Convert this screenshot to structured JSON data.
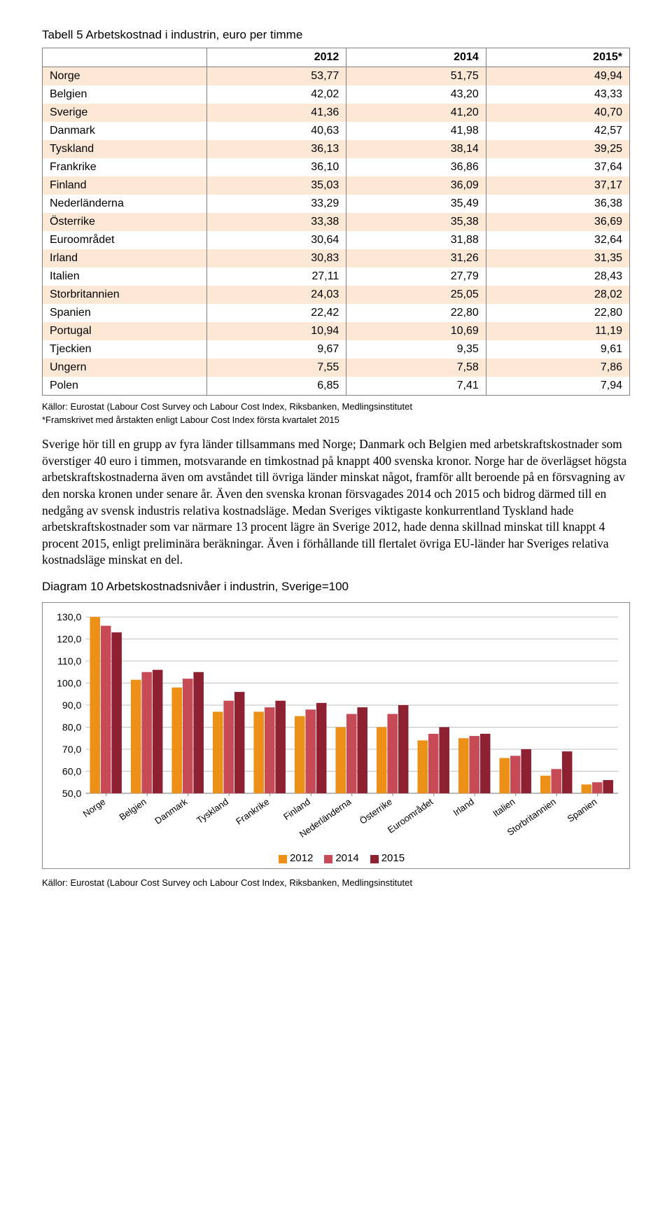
{
  "table": {
    "title": "Tabell 5 Arbetskostnad i industrin, euro per timme",
    "columns": [
      "",
      "2012",
      "2014",
      "2015*"
    ],
    "rows": [
      [
        "Norge",
        "53,77",
        "51,75",
        "49,94"
      ],
      [
        "Belgien",
        "42,02",
        "43,20",
        "43,33"
      ],
      [
        "Sverige",
        "41,36",
        "41,20",
        "40,70"
      ],
      [
        "Danmark",
        "40,63",
        "41,98",
        "42,57"
      ],
      [
        "Tyskland",
        "36,13",
        "38,14",
        "39,25"
      ],
      [
        "Frankrike",
        "36,10",
        "36,86",
        "37,64"
      ],
      [
        "Finland",
        "35,03",
        "36,09",
        "37,17"
      ],
      [
        "Nederländerna",
        "33,29",
        "35,49",
        "36,38"
      ],
      [
        "Österrike",
        "33,38",
        "35,38",
        "36,69"
      ],
      [
        "Euroområdet",
        "30,64",
        "31,88",
        "32,64"
      ],
      [
        "Irland",
        "30,83",
        "31,26",
        "31,35"
      ],
      [
        "Italien",
        "27,11",
        "27,79",
        "28,43"
      ],
      [
        "Storbritannien",
        "24,03",
        "25,05",
        "28,02"
      ],
      [
        "Spanien",
        "22,42",
        "22,80",
        "22,80"
      ],
      [
        "Portugal",
        "10,94",
        "10,69",
        "11,19"
      ],
      [
        "Tjeckien",
        "9,67",
        "9,35",
        "9,61"
      ],
      [
        "Ungern",
        "7,55",
        "7,58",
        "7,86"
      ],
      [
        "Polen",
        "6,85",
        "7,41",
        "7,94"
      ]
    ],
    "odd_row_color": "#fde8d6",
    "border_color": "#808080"
  },
  "source1": "Källor: Eurostat (Labour Cost Survey och Labour Cost Index, Riksbanken, Medlingsinstitutet",
  "footnote": "*Framskrivet med årstakten enligt  Labour Cost Index första kvartalet 2015",
  "body": "Sverige hör till en grupp av fyra länder tillsammans med Norge; Danmark och Belgien med arbetskraftskostnader som överstiger 40 euro i timmen, motsvarande en timkostnad på knappt 400 svenska kronor. Norge har de överlägset högsta arbetskraftskostnaderna även om avståndet till övriga länder minskat något, framför allt beroende på en försvagning av den norska kronen under senare år. Även den svenska kronan försvagades 2014 och 2015 och bidrog därmed till en nedgång av svensk industris relativa kostnadsläge. Medan Sveriges viktigaste konkurrentland Tyskland hade arbetskraftskostnader som var närmare 13 procent lägre än Sverige 2012, hade denna skillnad minskat till knappt 4 procent 2015, enligt preliminära beräkningar. Även i förhållande till flertalet övriga EU-länder har Sveriges relativa kostnadsläge minskat en del.",
  "chart": {
    "title": "Diagram 10 Arbetskostnadsnivåer i industrin, Sverige=100",
    "type": "grouped-bar",
    "categories": [
      "Norge",
      "Belgien",
      "Danmark",
      "Tyskland",
      "Frankrike",
      "Finland",
      "Nederländerna",
      "Österrike",
      "Euroområdet",
      "Irland",
      "Italien",
      "Storbritannien",
      "Spanien"
    ],
    "series": [
      {
        "name": "2012",
        "color": "#ed9017",
        "values": [
          130,
          101.5,
          98,
          87,
          87,
          85,
          80,
          80,
          74,
          75,
          66,
          58,
          54
        ]
      },
      {
        "name": "2014",
        "color": "#c74b56",
        "values": [
          126,
          105,
          102,
          92,
          89,
          88,
          86,
          86,
          77,
          76,
          67,
          61,
          55
        ]
      },
      {
        "name": "2015",
        "color": "#8e2131",
        "values": [
          123,
          106,
          105,
          96,
          92,
          91,
          89,
          90,
          80,
          77,
          70,
          69,
          56
        ]
      }
    ],
    "ylim": [
      50,
      130
    ],
    "ytick_step": 10,
    "yticks": [
      "50,0",
      "60,0",
      "70,0",
      "80,0",
      "90,0",
      "100,0",
      "110,0",
      "120,0",
      "130,0"
    ],
    "grid_color": "#bfbfbf",
    "axis_color": "#808080",
    "background": "#ffffff",
    "bar_group_gap": 8,
    "label_rotation": -35
  },
  "chart_source": "Källor: Eurostat (Labour Cost Survey och Labour Cost Index, Riksbanken, Medlingsinstitutet"
}
